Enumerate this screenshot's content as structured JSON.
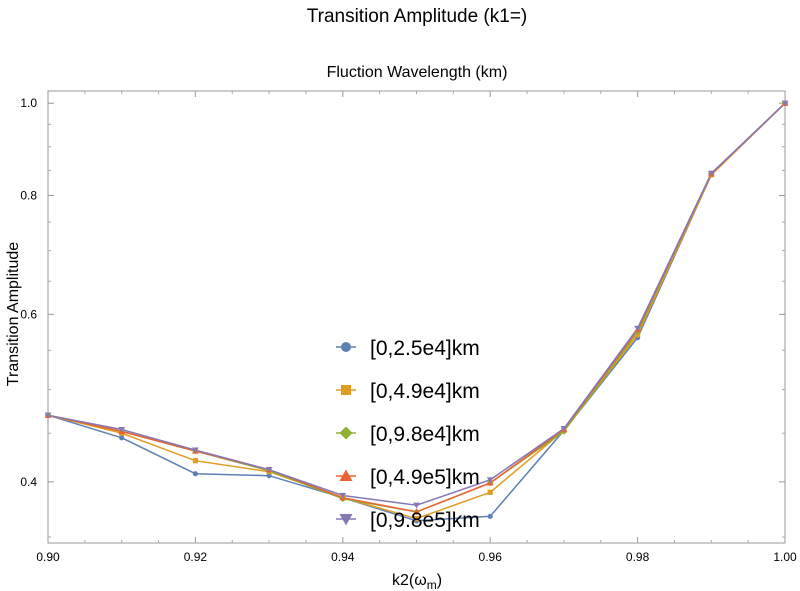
{
  "chart_data": {
    "type": "line",
    "title": "Transition Amplitude (k1=)",
    "subtitle": "Fluction Wavelength (km)",
    "xlabel": "k2(ω",
    "xlabel_sub": "m",
    "xlabel_close": ")",
    "ylabel": "Transition Amplitude",
    "xlim": [
      0.9,
      1.0
    ],
    "ylim": [
      0.345,
      1.03
    ],
    "yscale": "log",
    "x_ticks": [
      "0.90",
      "0.92",
      "0.94",
      "0.96",
      "0.98",
      "1.00"
    ],
    "y_ticks": [
      "0.4",
      "0.6",
      "0.8",
      "1.0"
    ],
    "legend_position": "center-bottom",
    "grid": false,
    "x": [
      0.9,
      0.91,
      0.92,
      0.93,
      0.94,
      0.95,
      0.96,
      0.97,
      0.98,
      0.99,
      1.0
    ],
    "series": [
      {
        "name": "[0,2.5e4]km",
        "color": "#5e81b5",
        "marker": "circle",
        "values": [
          0.47,
          0.445,
          0.408,
          0.406,
          0.385,
          0.364,
          0.368,
          0.453,
          0.567,
          0.841,
          1.0
        ]
      },
      {
        "name": "[0,4.9e4]km",
        "color": "#e19c24",
        "marker": "square",
        "values": [
          0.47,
          0.45,
          0.421,
          0.41,
          0.385,
          0.366,
          0.39,
          0.453,
          0.571,
          0.841,
          1.0
        ]
      },
      {
        "name": "[0,9.8e4]km",
        "color": "#8fb032",
        "marker": "diamond",
        "values": [
          0.47,
          0.452,
          0.431,
          0.411,
          0.384,
          0.372,
          0.399,
          0.452,
          0.575,
          0.843,
          1.0
        ]
      },
      {
        "name": "[0,4.9e5]km",
        "color": "#eb6235",
        "marker": "triangle-up",
        "values": [
          0.47,
          0.452,
          0.431,
          0.412,
          0.385,
          0.372,
          0.399,
          0.454,
          0.578,
          0.843,
          1.0
        ]
      },
      {
        "name": "[0,9.8e5]km",
        "color": "#8778b3",
        "marker": "triangle-down",
        "values": [
          0.47,
          0.454,
          0.432,
          0.412,
          0.387,
          0.378,
          0.402,
          0.455,
          0.58,
          0.844,
          1.0
        ]
      }
    ]
  }
}
